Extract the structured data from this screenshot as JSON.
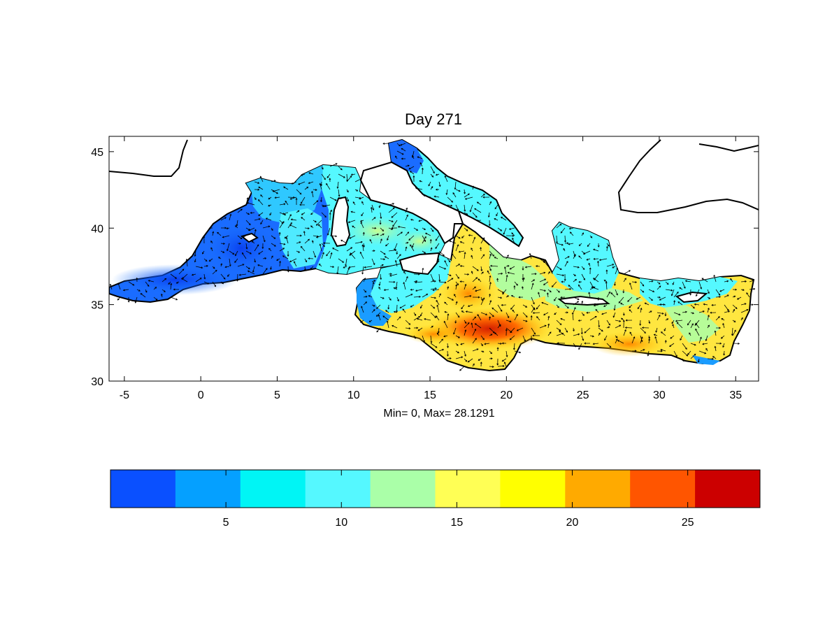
{
  "figure": {
    "title": "Day 271",
    "xlabel": "Min= 0,  Max= 28.1291"
  },
  "map": {
    "type": "heatmap",
    "region": "Mediterranean Sea",
    "x_ticks": [
      "-5",
      "0",
      "5",
      "10",
      "15",
      "20",
      "25",
      "30",
      "35"
    ],
    "y_ticks": [
      "30",
      "35",
      "40",
      "45"
    ],
    "xlim": [
      -6,
      36.5
    ],
    "ylim": [
      30,
      46
    ],
    "overlay": "velocity vectors (arrows)",
    "value_min": 0,
    "value_max": 28.1291
  },
  "colorbar": {
    "ticks": [
      "5",
      "10",
      "15",
      "20",
      "25"
    ],
    "range": [
      0,
      28.1291
    ],
    "colors": [
      "#0a50ff",
      "#05a0ff",
      "#00f5f5",
      "#55f8ff",
      "#aaffa8",
      "#ffff55",
      "#ffff00",
      "#ffaa00",
      "#ff5500",
      "#cc0000"
    ]
  }
}
